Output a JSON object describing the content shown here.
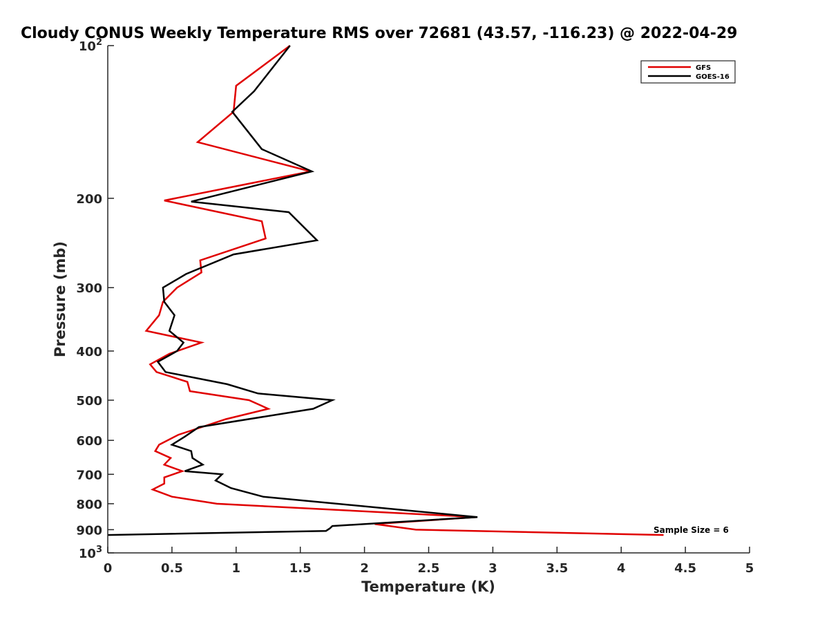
{
  "chart_data": {
    "type": "line",
    "title": "Cloudy CONUS Weekly Temperature RMS over 72681 (43.57, -116.23) @ 2022-04-29",
    "xlabel": "Temperature (K)",
    "ylabel": "Pressure (mb)",
    "xlim": [
      0,
      5
    ],
    "ylim": [
      100,
      1000
    ],
    "y_scale": "log",
    "y_reversed": true,
    "grid": false,
    "legend_position": "top-right",
    "x_ticks": [
      {
        "value": 0,
        "label": "0"
      },
      {
        "value": 0.5,
        "label": "0.5"
      },
      {
        "value": 1,
        "label": "1"
      },
      {
        "value": 1.5,
        "label": "1.5"
      },
      {
        "value": 2,
        "label": "2"
      },
      {
        "value": 2.5,
        "label": "2.5"
      },
      {
        "value": 3,
        "label": "3"
      },
      {
        "value": 3.5,
        "label": "3.5"
      },
      {
        "value": 4,
        "label": "4"
      },
      {
        "value": 4.5,
        "label": "4.5"
      },
      {
        "value": 5,
        "label": "5"
      }
    ],
    "y_ticks": [
      {
        "value": 100,
        "label": "10",
        "sup": "2"
      },
      {
        "value": 200,
        "label": "200",
        "sup": ""
      },
      {
        "value": 300,
        "label": "300",
        "sup": ""
      },
      {
        "value": 400,
        "label": "400",
        "sup": ""
      },
      {
        "value": 500,
        "label": "500",
        "sup": ""
      },
      {
        "value": 600,
        "label": "600",
        "sup": ""
      },
      {
        "value": 700,
        "label": "700",
        "sup": ""
      },
      {
        "value": 800,
        "label": "800",
        "sup": ""
      },
      {
        "value": 900,
        "label": "900",
        "sup": ""
      },
      {
        "value": 1000,
        "label": "10",
        "sup": "3"
      }
    ],
    "series": [
      {
        "name": "GFS",
        "color": "#e00000",
        "x": [
          1.42,
          1.0,
          0.98,
          0.7,
          1.58,
          0.44,
          1.2,
          1.23,
          0.72,
          0.73,
          0.54,
          0.43,
          0.4,
          0.3,
          0.73,
          0.48,
          0.33,
          0.38,
          0.62,
          0.64,
          1.1,
          1.25,
          0.92,
          0.55,
          0.4,
          0.37,
          0.49,
          0.44,
          0.58,
          0.44,
          0.44,
          0.35,
          0.5,
          0.85,
          2.87,
          2.08,
          2.4,
          4.33
        ],
        "y": [
          100,
          120,
          135,
          155,
          177,
          202,
          222,
          240,
          265,
          280,
          300,
          320,
          340,
          365,
          385,
          405,
          425,
          440,
          460,
          480,
          500,
          520,
          545,
          585,
          612,
          630,
          650,
          670,
          690,
          710,
          730,
          750,
          775,
          800,
          850,
          877,
          900,
          922
        ]
      },
      {
        "name": "GOES-16",
        "color": "#000000",
        "x": [
          1.42,
          1.14,
          0.97,
          1.2,
          1.59,
          0.65,
          1.41,
          1.63,
          0.98,
          0.61,
          0.43,
          0.44,
          0.52,
          0.48,
          0.59,
          0.54,
          0.39,
          0.45,
          0.93,
          1.17,
          1.75,
          1.6,
          0.71,
          0.6,
          0.5,
          0.65,
          0.66,
          0.74,
          0.6,
          0.89,
          0.84,
          0.96,
          1.21,
          2.88,
          1.75,
          1.73,
          1.7,
          0.0
        ],
        "y": [
          100,
          123,
          135,
          160,
          177,
          203,
          213,
          242,
          258,
          282,
          300,
          320,
          340,
          365,
          385,
          400,
          420,
          440,
          465,
          485,
          500,
          520,
          565,
          590,
          612,
          630,
          650,
          670,
          690,
          700,
          720,
          745,
          775,
          850,
          885,
          895,
          905,
          922
        ]
      }
    ],
    "annotations": [
      {
        "text": "Sample Size = 6",
        "x": 4.25,
        "y": 900
      }
    ]
  }
}
